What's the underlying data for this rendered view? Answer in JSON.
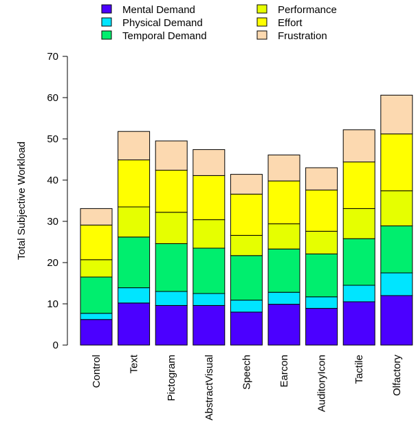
{
  "chart_data": {
    "type": "bar",
    "stacked": true,
    "title": "",
    "xlabel": "",
    "ylabel": "Total Subjective Workload",
    "ylim": [
      0,
      70
    ],
    "yticks": [
      0,
      10,
      20,
      30,
      40,
      50,
      60,
      70
    ],
    "grid": false,
    "legend_position": "top",
    "categories": [
      "Control",
      "Text",
      "Pictogram",
      "AbstractVisual",
      "Speech",
      "Earcon",
      "AuditoryIcon",
      "Tactile",
      "Olfactory"
    ],
    "series": [
      {
        "name": "Mental Demand",
        "color": "#4b00ff",
        "values": [
          6.2,
          10.2,
          9.6,
          9.6,
          8.0,
          9.9,
          8.9,
          10.5,
          12.0
        ]
      },
      {
        "name": "Physical Demand",
        "color": "#00e5ff",
        "values": [
          1.5,
          3.7,
          3.4,
          2.9,
          2.9,
          2.9,
          2.8,
          4.0,
          5.5
        ]
      },
      {
        "name": "Temporal Demand",
        "color": "#00ee6e",
        "values": [
          8.8,
          12.3,
          11.6,
          11.0,
          10.8,
          10.5,
          10.4,
          11.3,
          11.4
        ]
      },
      {
        "name": "Performance",
        "color": "#e6ff00",
        "values": [
          4.2,
          7.3,
          7.6,
          6.9,
          4.9,
          6.1,
          5.5,
          7.3,
          8.5
        ]
      },
      {
        "name": "Effort",
        "color": "#ffff00",
        "values": [
          8.4,
          11.4,
          10.2,
          10.7,
          10.0,
          10.4,
          10.0,
          11.3,
          13.8
        ]
      },
      {
        "name": "Frustration",
        "color": "#fcd9b0",
        "values": [
          4.0,
          6.9,
          7.1,
          6.3,
          4.8,
          6.3,
          5.4,
          7.8,
          9.4
        ]
      }
    ]
  }
}
